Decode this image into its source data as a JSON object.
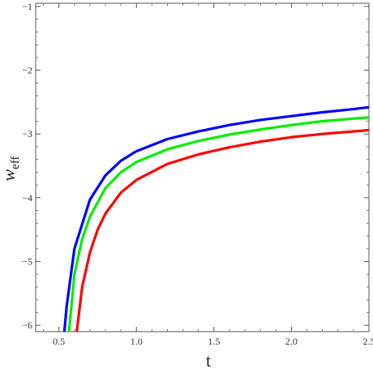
{
  "chart_data": {
    "type": "line",
    "xlabel": "t",
    "ylabel": "w",
    "ylabel_sub": "eff",
    "xlim": [
      0.35,
      2.5
    ],
    "ylim": [
      -6.1,
      -0.95
    ],
    "x_ticks": [
      0.5,
      1.0,
      1.5,
      2.0,
      2.5
    ],
    "x_tick_labels": [
      "0.5",
      "1.0",
      "1.5",
      "2.0",
      "2.5"
    ],
    "y_ticks": [
      -6,
      -5,
      -4,
      -3,
      -2,
      -1
    ],
    "y_tick_labels": [
      "−6",
      "−5",
      "−4",
      "−3",
      "−2",
      "−1"
    ],
    "grid": false,
    "series": [
      {
        "color": "#0000ff",
        "x": [
          0.535,
          0.55,
          0.6,
          0.7,
          0.8,
          0.9,
          1.0,
          1.2,
          1.4,
          1.6,
          1.8,
          2.0,
          2.2,
          2.4,
          2.5
        ],
        "y": [
          -6.1,
          -5.7,
          -4.8,
          -4.03,
          -3.65,
          -3.42,
          -3.27,
          -3.08,
          -2.96,
          -2.86,
          -2.78,
          -2.72,
          -2.66,
          -2.61,
          -2.58
        ]
      },
      {
        "color": "#00ee00",
        "x": [
          0.565,
          0.6,
          0.65,
          0.7,
          0.8,
          0.9,
          1.0,
          1.2,
          1.4,
          1.6,
          1.8,
          2.0,
          2.2,
          2.4,
          2.5
        ],
        "y": [
          -6.1,
          -5.2,
          -4.65,
          -4.3,
          -3.85,
          -3.6,
          -3.44,
          -3.24,
          -3.11,
          -3.01,
          -2.93,
          -2.86,
          -2.8,
          -2.76,
          -2.74
        ]
      },
      {
        "color": "#ff0000",
        "x": [
          0.615,
          0.65,
          0.7,
          0.75,
          0.8,
          0.9,
          1.0,
          1.2,
          1.4,
          1.6,
          1.8,
          2.0,
          2.2,
          2.4,
          2.5
        ],
        "y": [
          -6.1,
          -5.4,
          -4.86,
          -4.5,
          -4.25,
          -3.92,
          -3.72,
          -3.47,
          -3.32,
          -3.21,
          -3.12,
          -3.05,
          -3.0,
          -2.96,
          -2.94
        ]
      }
    ]
  }
}
